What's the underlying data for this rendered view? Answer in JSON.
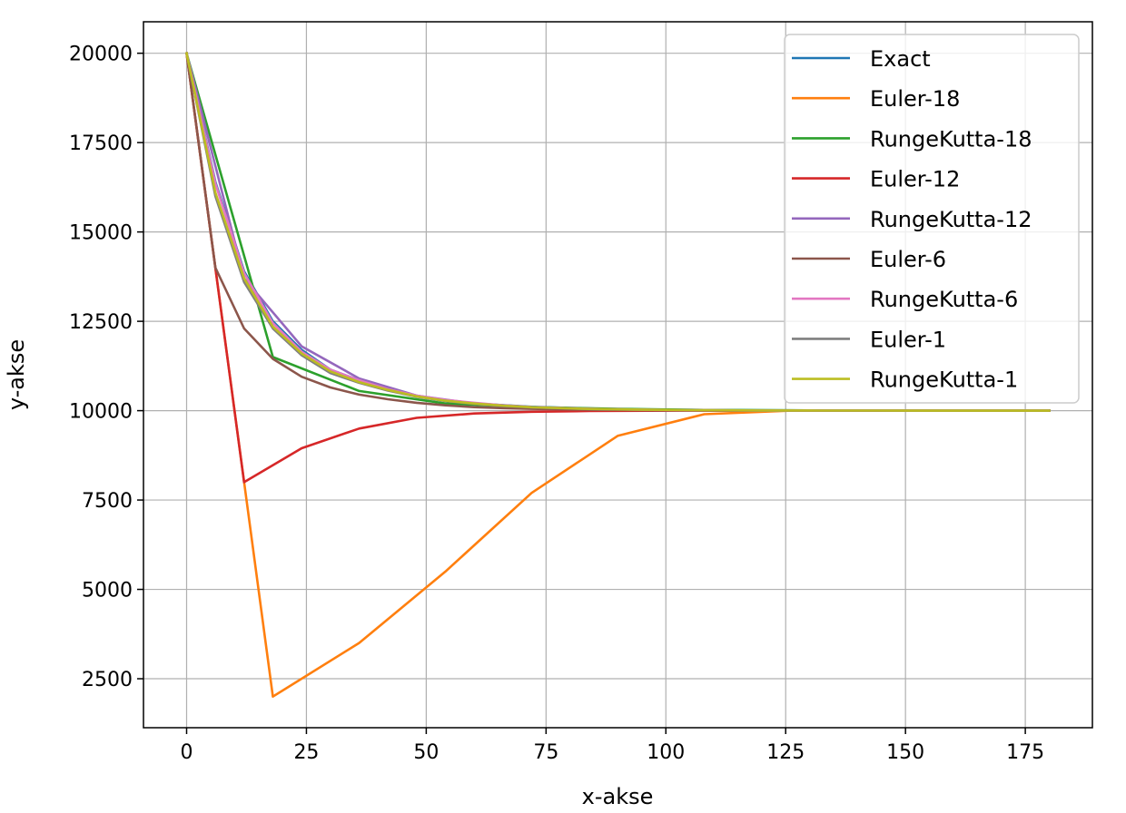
{
  "chart_data": {
    "type": "line",
    "title": "",
    "xlabel": "x-akse",
    "ylabel": "y-akse",
    "xlim": [
      -9,
      189
    ],
    "ylim": [
      1130,
      20880
    ],
    "xticks": [
      0,
      25,
      50,
      75,
      100,
      125,
      150,
      175
    ],
    "yticks": [
      2500,
      5000,
      7500,
      10000,
      12500,
      15000,
      17500,
      20000
    ],
    "xtick_labels": [
      "0",
      "25",
      "50",
      "75",
      "100",
      "125",
      "150",
      "175"
    ],
    "ytick_labels": [
      "2500",
      "5000",
      "7500",
      "10000",
      "12500",
      "15000",
      "17500",
      "20000"
    ],
    "grid": true,
    "legend_position": "top-right",
    "series": [
      {
        "name": "Exact",
        "color": "#1f77b4",
        "x": [
          0,
          6,
          12,
          18,
          24,
          30,
          36,
          42,
          48,
          54,
          60,
          72,
          84,
          96,
          108,
          120,
          150,
          180
        ],
        "y": [
          20000,
          16400,
          13900,
          12500,
          11700,
          11150,
          10850,
          10620,
          10420,
          10280,
          10200,
          10110,
          10060,
          10030,
          10020,
          10010,
          10003,
          10001
        ]
      },
      {
        "name": "Euler-18",
        "color": "#ff7f0e",
        "x": [
          0,
          18,
          36,
          54,
          72,
          90,
          108,
          126,
          144,
          162,
          180
        ],
        "y": [
          20000,
          2000,
          3500,
          5500,
          7700,
          9300,
          9900,
          10000,
          10000,
          10000,
          10000
        ]
      },
      {
        "name": "RungeKutta-18",
        "color": "#2ca02c",
        "x": [
          0,
          18,
          36,
          54,
          72,
          90,
          108,
          126,
          144,
          162,
          180
        ],
        "y": [
          20000,
          11500,
          10550,
          10200,
          10100,
          10050,
          10020,
          10010,
          10005,
          10002,
          10001
        ]
      },
      {
        "name": "Euler-12",
        "color": "#d62728",
        "x": [
          0,
          12,
          24,
          36,
          48,
          60,
          72,
          84,
          96,
          108,
          120,
          132,
          144,
          156,
          168,
          180
        ],
        "y": [
          20000,
          8000,
          8950,
          9500,
          9800,
          9920,
          9970,
          9990,
          9997,
          10000,
          10000,
          10000,
          10000,
          10000,
          10000,
          10000
        ]
      },
      {
        "name": "RungeKutta-12",
        "color": "#9467bd",
        "x": [
          0,
          12,
          24,
          36,
          48,
          60,
          72,
          84,
          96,
          108,
          120,
          132,
          144,
          156,
          168,
          180
        ],
        "y": [
          20000,
          13700,
          11800,
          10900,
          10420,
          10200,
          10100,
          10050,
          10020,
          10010,
          10005,
          10002,
          10001,
          10000,
          10000,
          10000
        ]
      },
      {
        "name": "Euler-6",
        "color": "#8c564b",
        "x": [
          0,
          6,
          12,
          18,
          24,
          30,
          36,
          42,
          48,
          54,
          60,
          66,
          72,
          84,
          96,
          108,
          120,
          132,
          144,
          156,
          168,
          180
        ],
        "y": [
          20000,
          14000,
          12300,
          11450,
          10950,
          10650,
          10450,
          10320,
          10220,
          10150,
          10100,
          10070,
          10050,
          10025,
          10012,
          10006,
          10003,
          10001,
          10000,
          10000,
          10000,
          10000
        ]
      },
      {
        "name": "RungeKutta-6",
        "color": "#e377c2",
        "x": [
          0,
          6,
          12,
          18,
          24,
          30,
          36,
          42,
          48,
          54,
          60,
          66,
          72,
          84,
          96,
          108,
          120,
          132,
          144,
          156,
          168,
          180
        ],
        "y": [
          20000,
          16350,
          13850,
          12450,
          11650,
          11150,
          10850,
          10600,
          10420,
          10300,
          10220,
          10150,
          10100,
          10050,
          10025,
          10012,
          10006,
          10003,
          10001,
          10000,
          10000,
          10000
        ]
      },
      {
        "name": "Euler-1",
        "color": "#7f7f7f",
        "x": [
          0,
          6,
          12,
          18,
          24,
          30,
          36,
          42,
          48,
          54,
          60,
          66,
          72,
          84,
          96,
          108,
          120,
          132,
          144,
          156,
          168,
          180
        ],
        "y": [
          20000,
          16000,
          13600,
          12300,
          11550,
          11050,
          10780,
          10560,
          10390,
          10270,
          10190,
          10130,
          10090,
          10045,
          10022,
          10011,
          10005,
          10002,
          10001,
          10000,
          10000,
          10000
        ]
      },
      {
        "name": "RungeKutta-1",
        "color": "#bcbd22",
        "x": [
          0,
          6,
          12,
          18,
          24,
          30,
          36,
          42,
          48,
          54,
          60,
          66,
          72,
          84,
          96,
          108,
          120,
          132,
          144,
          156,
          168,
          180
        ],
        "y": [
          20000,
          16100,
          13700,
          12350,
          11600,
          11100,
          10800,
          10580,
          10400,
          10280,
          10200,
          10140,
          10095,
          10048,
          10024,
          10012,
          10006,
          10003,
          10001,
          10000,
          10000,
          10000
        ]
      }
    ]
  }
}
